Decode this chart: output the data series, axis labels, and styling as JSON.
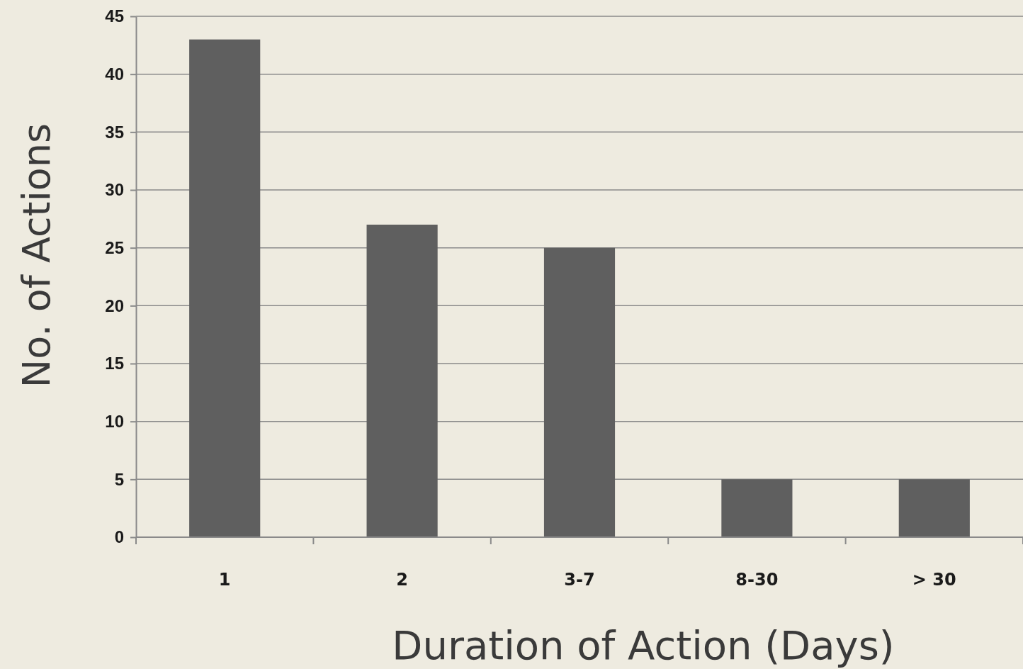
{
  "chart_data": {
    "type": "bar",
    "xlabel": "Duration of Action (Days)",
    "ylabel": "No. of Actions",
    "categories": [
      "1",
      "2",
      "3-7",
      "8-30",
      "> 30"
    ],
    "values": [
      43,
      27,
      25,
      5,
      5
    ],
    "color": "#5f5f5f",
    "ylim": [
      0,
      45
    ],
    "yticks": [
      0,
      5,
      10,
      15,
      20,
      25,
      30,
      35,
      40,
      45
    ],
    "grid": "y"
  }
}
